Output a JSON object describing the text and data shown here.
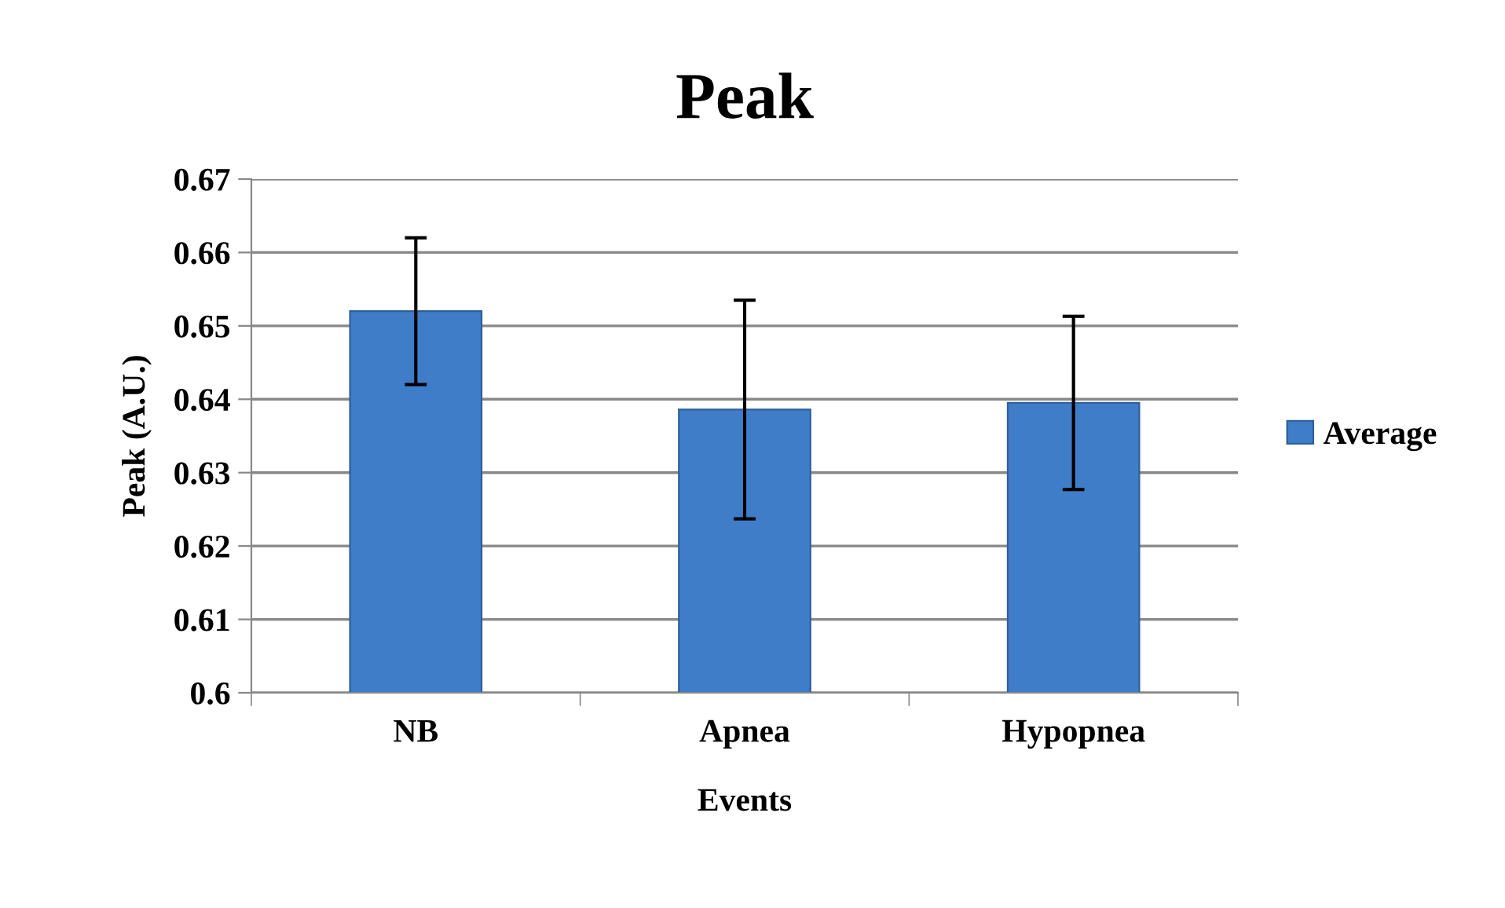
{
  "chart_data": {
    "type": "bar",
    "title": "Peak",
    "xlabel": "Events",
    "ylabel": "Peak (A.U.)",
    "categories": [
      "NB",
      "Apnea",
      "Hypopnea"
    ],
    "series": [
      {
        "name": "Average",
        "color": "#3f7dc9",
        "values": [
          0.652,
          0.6386,
          0.6395
        ],
        "errors": [
          0.01,
          0.0149,
          0.0118
        ]
      }
    ],
    "ylim": [
      0.6,
      0.67
    ],
    "yticks": [
      {
        "value": 0.6,
        "label": "0.6"
      },
      0.61,
      0.62,
      0.63,
      0.64,
      0.65,
      0.66,
      0.67
    ],
    "grid": "y",
    "legend": "right"
  }
}
